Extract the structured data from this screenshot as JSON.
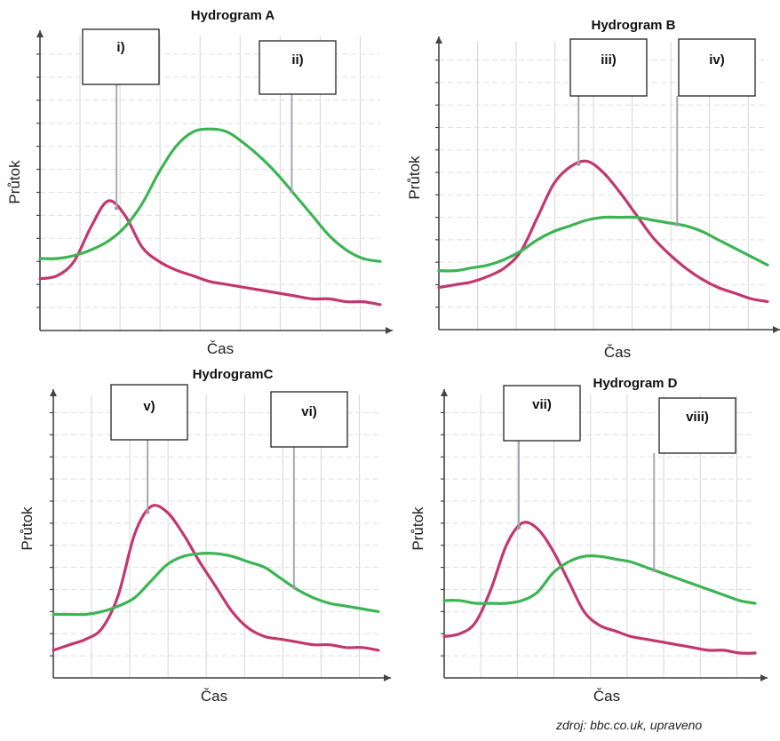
{
  "chart_data": [
    {
      "type": "line",
      "title": "Hydrogram A",
      "xlabel": "Čas",
      "ylabel": "Průtok",
      "grid": true,
      "ylim": [
        0,
        100
      ],
      "x": [
        0,
        1,
        2,
        3,
        4,
        5,
        6,
        7,
        8,
        9,
        10,
        11,
        12,
        13,
        14,
        15,
        16,
        17,
        18,
        19,
        20
      ],
      "series": [
        {
          "color": "#c2386e",
          "values": [
            18,
            19,
            24,
            36,
            45,
            40,
            29,
            24,
            21,
            19,
            17,
            16,
            15,
            14,
            13,
            12,
            11,
            11,
            10,
            10,
            9
          ]
        },
        {
          "color": "#3db454",
          "values": [
            25,
            25,
            26,
            28,
            31,
            36,
            44,
            55,
            64,
            69,
            70,
            69,
            65,
            60,
            54,
            47,
            40,
            33,
            28,
            25,
            24
          ]
        }
      ],
      "annotations": [
        {
          "label": "i)",
          "x": 4.5
        },
        {
          "label": "ii)",
          "x": 14.8
        }
      ]
    },
    {
      "type": "line",
      "title": "Hydrogram B",
      "xlabel": "Čas",
      "ylabel": "Průtok",
      "grid": true,
      "ylim": [
        0,
        100
      ],
      "x": [
        0,
        1,
        2,
        3,
        4,
        5,
        6,
        7,
        8,
        9,
        10,
        11,
        12,
        13,
        14,
        15,
        16,
        17,
        18,
        19,
        20
      ],
      "series": [
        {
          "color": "#c2386e",
          "values": [
            15,
            16,
            17,
            19,
            22,
            28,
            40,
            52,
            58,
            60,
            56,
            49,
            41,
            33,
            27,
            22,
            18,
            15,
            13,
            11,
            10
          ]
        },
        {
          "color": "#3db454",
          "values": [
            21,
            21,
            22,
            23,
            25,
            28,
            32,
            35,
            37,
            39,
            40,
            40,
            40,
            39,
            38,
            37,
            35,
            32,
            29,
            26,
            23
          ]
        }
      ],
      "annotations": [
        {
          "label": "iii)",
          "x": 8.5
        },
        {
          "label": "iv)",
          "x": 14.5
        }
      ]
    },
    {
      "type": "line",
      "title": "HydrogramC",
      "xlabel": "Čas",
      "ylabel": "Průtok",
      "grid": true,
      "ylim": [
        0,
        100
      ],
      "x": [
        0,
        1,
        2,
        3,
        4,
        5,
        6,
        7,
        8,
        9,
        10,
        11,
        12,
        13,
        14,
        15,
        16,
        17,
        18,
        19,
        20
      ],
      "series": [
        {
          "color": "#c2386e",
          "values": [
            10,
            12,
            14,
            18,
            30,
            52,
            62,
            60,
            52,
            42,
            33,
            24,
            18,
            15,
            14,
            13,
            12,
            12,
            11,
            11,
            10
          ]
        },
        {
          "color": "#3db454",
          "values": [
            23,
            23,
            23,
            24,
            26,
            29,
            35,
            41,
            44,
            45,
            45,
            44,
            42,
            40,
            36,
            32,
            29,
            27,
            26,
            25,
            24
          ]
        }
      ],
      "annotations": [
        {
          "label": "v)",
          "x": 5.8
        },
        {
          "label": "vi)",
          "x": 14.8
        }
      ]
    },
    {
      "type": "line",
      "title": "Hydrogram D",
      "xlabel": "Čas",
      "ylabel": "Průtok",
      "grid": true,
      "ylim": [
        0,
        100
      ],
      "x": [
        0,
        1,
        2,
        3,
        4,
        5,
        6,
        7,
        8,
        9,
        10,
        11,
        12,
        13,
        14,
        15,
        16,
        17,
        18,
        19,
        20
      ],
      "series": [
        {
          "color": "#c2386e",
          "values": [
            15,
            16,
            20,
            32,
            48,
            56,
            54,
            46,
            35,
            24,
            19,
            17,
            15,
            14,
            13,
            12,
            11,
            10,
            10,
            9,
            9
          ]
        },
        {
          "color": "#3db454",
          "values": [
            28,
            28,
            27,
            27,
            27,
            28,
            31,
            38,
            42,
            44,
            44,
            43,
            42,
            40,
            38,
            36,
            34,
            32,
            30,
            28,
            27
          ]
        }
      ],
      "annotations": [
        {
          "label": "vii)",
          "x": 4.8
        },
        {
          "label": "viii)",
          "x": 13.5
        }
      ]
    }
  ],
  "source_note": "zdroj: bbc.co.uk, upraveno"
}
